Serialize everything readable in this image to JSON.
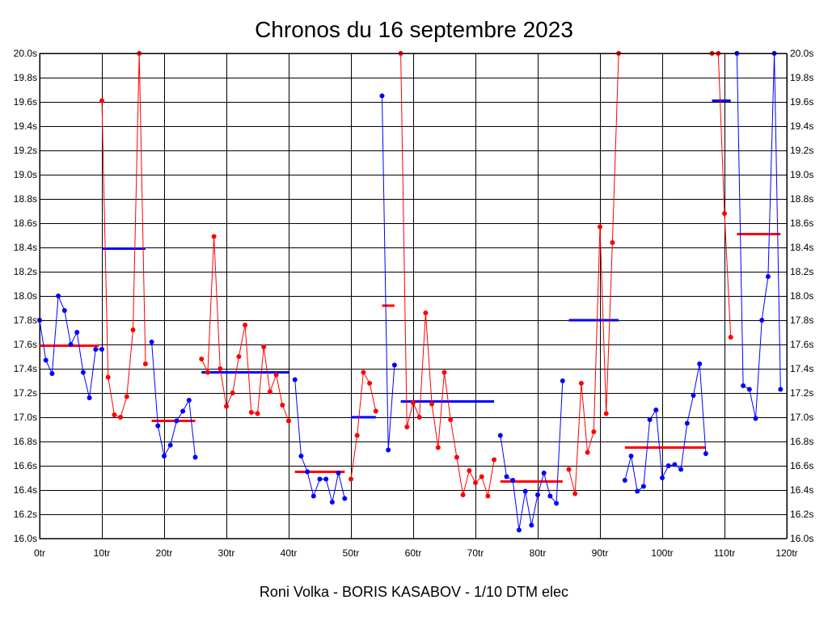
{
  "chart_data": {
    "type": "line",
    "title": "Chronos du 16 septembre 2023",
    "subtitle": "Roni Volka - BORIS KASABOV - 1/10 DTM elec",
    "xlim": [
      0,
      120
    ],
    "ylim": [
      16.0,
      20.0
    ],
    "x_ticks": [
      0,
      10,
      20,
      30,
      40,
      50,
      60,
      70,
      80,
      90,
      100,
      110,
      120
    ],
    "x_tick_labels": [
      "0tr",
      "10tr",
      "20tr",
      "30tr",
      "40tr",
      "50tr",
      "60tr",
      "70tr",
      "80tr",
      "90tr",
      "100tr",
      "110tr",
      "120tr"
    ],
    "y_ticks": [
      16.0,
      16.2,
      16.4,
      16.6,
      16.8,
      17.0,
      17.2,
      17.4,
      17.6,
      17.8,
      18.0,
      18.2,
      18.4,
      18.6,
      18.8,
      19.0,
      19.2,
      19.4,
      19.6,
      19.8,
      20.0
    ],
    "y_tick_labels": [
      "16.0s",
      "16.2s",
      "16.4s",
      "16.6s",
      "16.8s",
      "17.0s",
      "17.2s",
      "17.4s",
      "17.6s",
      "17.8s",
      "18.0s",
      "18.2s",
      "18.4s",
      "18.6s",
      "18.8s",
      "19.0s",
      "19.2s",
      "19.4s",
      "19.6s",
      "19.8s",
      "20.0s"
    ],
    "grid": true,
    "colors": {
      "blue": "#0000ff",
      "red": "#ff0000"
    },
    "series": [
      {
        "color": "blue",
        "x": [
          0,
          1,
          2,
          3,
          4,
          5,
          6,
          7,
          8,
          9,
          10
        ],
        "y": [
          17.8,
          17.47,
          17.36,
          18.0,
          17.88,
          17.6,
          17.7,
          17.37,
          17.16,
          17.56,
          17.56
        ]
      },
      {
        "color": "red",
        "x": [
          10,
          11,
          12,
          13,
          14,
          15,
          16,
          17
        ],
        "y": [
          19.61,
          17.33,
          17.02,
          17.0,
          17.17,
          17.72,
          20.0,
          17.44
        ]
      },
      {
        "color": "blue",
        "x": [
          18,
          19,
          20,
          21,
          22,
          23,
          24,
          25
        ],
        "y": [
          17.62,
          16.93,
          16.68,
          16.77,
          16.97,
          17.05,
          17.14,
          16.67
        ]
      },
      {
        "color": "red",
        "x": [
          26,
          27,
          28,
          29,
          30,
          31,
          32,
          33,
          34,
          35,
          36,
          37,
          38,
          39,
          40
        ],
        "y": [
          17.48,
          17.37,
          18.49,
          17.4,
          17.09,
          17.2,
          17.5,
          17.76,
          17.04,
          17.03,
          17.58,
          17.21,
          17.35,
          17.1,
          16.97
        ]
      },
      {
        "color": "blue",
        "x": [
          41,
          42,
          43,
          44,
          45,
          46,
          47,
          48,
          49
        ],
        "y": [
          17.31,
          16.68,
          16.55,
          16.35,
          16.49,
          16.49,
          16.3,
          16.54,
          16.33
        ]
      },
      {
        "color": "red",
        "x": [
          50,
          51,
          52,
          53,
          54
        ],
        "y": [
          16.49,
          16.85,
          17.37,
          17.28,
          17.05
        ]
      },
      {
        "color": "blue",
        "x": [
          55,
          56,
          57
        ],
        "y": [
          19.65,
          16.73,
          17.43
        ]
      },
      {
        "color": "red",
        "x": [
          58,
          59,
          60,
          61,
          62,
          63,
          64,
          65,
          66,
          67,
          68,
          69,
          70,
          71,
          72,
          73
        ],
        "y": [
          20.0,
          16.92,
          17.12,
          17.0,
          17.86,
          17.11,
          16.75,
          17.37,
          16.98,
          16.67,
          16.36,
          16.56,
          16.46,
          16.51,
          16.35,
          16.65
        ]
      },
      {
        "color": "blue",
        "x": [
          74,
          75,
          76,
          77,
          78,
          79,
          80,
          81,
          82,
          83,
          84
        ],
        "y": [
          16.85,
          16.51,
          16.48,
          16.07,
          16.39,
          16.11,
          16.36,
          16.54,
          16.35,
          16.29,
          17.3
        ]
      },
      {
        "color": "red",
        "x": [
          85,
          86,
          87,
          88,
          89,
          90,
          91,
          92,
          93
        ],
        "y": [
          16.57,
          16.37,
          17.28,
          16.71,
          16.88,
          18.57,
          17.03,
          18.44,
          20.0
        ]
      },
      {
        "color": "blue",
        "x": [
          94,
          95,
          96,
          97,
          98,
          99,
          100,
          101,
          102,
          103,
          104,
          105,
          106,
          107
        ],
        "y": [
          16.48,
          16.68,
          16.39,
          16.43,
          16.98,
          17.06,
          16.5,
          16.6,
          16.61,
          16.57,
          16.95,
          17.18,
          17.44,
          16.7
        ]
      },
      {
        "color": "red",
        "x": [
          108,
          109,
          110,
          111
        ],
        "y": [
          20.0,
          20.0,
          18.68,
          17.66
        ]
      },
      {
        "color": "blue",
        "x": [
          112,
          113,
          114,
          115,
          116,
          117,
          118,
          119
        ],
        "y": [
          20.0,
          17.26,
          17.23,
          16.99,
          17.8,
          18.16,
          20.0,
          17.23
        ]
      }
    ],
    "averages": [
      {
        "color": "red",
        "x_start": 0,
        "x_end": 9.5,
        "y": 17.59
      },
      {
        "color": "blue",
        "x_start": 10,
        "x_end": 17,
        "y": 18.39
      },
      {
        "color": "red",
        "x_start": 18,
        "x_end": 25,
        "y": 16.97
      },
      {
        "color": "blue",
        "x_start": 26,
        "x_end": 40,
        "y": 17.37
      },
      {
        "color": "red",
        "x_start": 41,
        "x_end": 49,
        "y": 16.55
      },
      {
        "color": "blue",
        "x_start": 50,
        "x_end": 54,
        "y": 17.0
      },
      {
        "color": "red",
        "x_start": 55,
        "x_end": 57,
        "y": 17.92
      },
      {
        "color": "blue",
        "x_start": 58,
        "x_end": 73,
        "y": 17.13
      },
      {
        "color": "red",
        "x_start": 74,
        "x_end": 84,
        "y": 16.47
      },
      {
        "color": "blue",
        "x_start": 85,
        "x_end": 93,
        "y": 17.8
      },
      {
        "color": "red",
        "x_start": 94,
        "x_end": 107,
        "y": 16.75
      },
      {
        "color": "blue",
        "x_start": 108,
        "x_end": 111,
        "y": 19.61
      },
      {
        "color": "red",
        "x_start": 112,
        "x_end": 119,
        "y": 18.51
      }
    ]
  }
}
